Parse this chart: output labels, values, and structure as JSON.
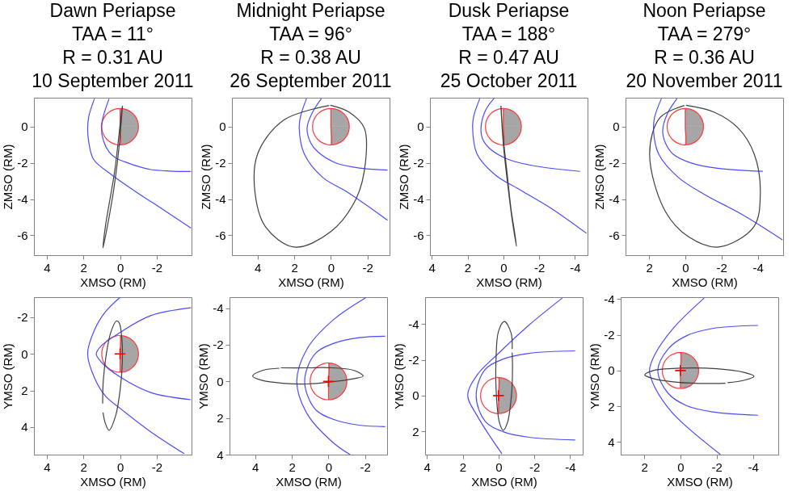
{
  "chart_data": [
    {
      "type": "line",
      "title": "Dawn Periapse\nTAA = 11°\nR = 0.31 AU\n10 September 2011",
      "xlabel": "XMSO (RM)",
      "ylabel": "ZMSO (RM)",
      "xlim": [
        4.7,
        -3.9
      ],
      "ylim": [
        -7.1,
        1.6
      ],
      "xticks": [
        4,
        2,
        0,
        -2
      ],
      "yticks": [
        0,
        -2,
        -4,
        -6
      ],
      "series": [
        {
          "type": "area",
          "color": "#a6a6a6",
          "x": [
            0,
            -0.2,
            -0.4,
            -0.6,
            -0.8,
            -0.9,
            -0.97,
            -1
          ],
          "values": [
            1,
            0.98,
            0.92,
            0.8,
            0.6,
            0.44,
            0.24,
            0
          ]
        },
        {
          "type": "area",
          "color": "#a6a6a6",
          "x": [
            0,
            -0.2,
            -0.4,
            -0.6,
            -0.8,
            -0.9,
            -0.97,
            -1
          ],
          "values": [
            -1,
            -0.98,
            -0.92,
            -0.8,
            -0.6,
            -0.44,
            -0.24,
            0
          ]
        },
        {
          "color": "#ff3b3b",
          "x": [
            0,
            0,
            0,
            0.26,
            0.5,
            0.71,
            0.87,
            0.97,
            1,
            0.97,
            0.87,
            0.71,
            0.5,
            0.26,
            0,
            -0.26,
            -0.5,
            -0.71,
            -0.87,
            -0.97,
            -1,
            -0.97,
            -0.87,
            -0.71,
            -0.5,
            -0.26,
            0
          ],
          "values": [
            1,
            0,
            -1,
            -0.97,
            -0.87,
            -0.71,
            -0.5,
            -0.26,
            0,
            0.26,
            0.5,
            0.71,
            0.87,
            0.97,
            1,
            0.97,
            0.87,
            0.71,
            0.5,
            0.26,
            0,
            -0.26,
            -0.5,
            -0.71,
            -0.87,
            -0.97,
            -1
          ]
        },
        {
          "color": "#4b4bff",
          "x": [
            0.6,
            0.85,
            1.02,
            0.9,
            0.6,
            0.2,
            -0.26,
            -1.0,
            -1.67,
            -2.7,
            -3.87
          ],
          "values": [
            1.54,
            0.8,
            0,
            -0.8,
            -1.4,
            -1.75,
            -1.94,
            -2.2,
            -2.37,
            -2.45,
            -2.48
          ]
        },
        {
          "color": "#4b4bff",
          "x": [
            1.4,
            1.7,
            1.77,
            1.7,
            1.45,
            0.46,
            -0.96,
            -2.38,
            -3.87
          ],
          "values": [
            1.54,
            0.6,
            -0.1,
            -0.9,
            -1.8,
            -2.66,
            -3.66,
            -4.6,
            -5.6
          ]
        },
        {
          "color": "#404040",
          "x": [
            -0.13,
            0.0,
            0.15,
            0.35,
            0.6,
            0.93,
            0.8,
            0.55,
            0.3,
            0.12,
            -0.02,
            -0.12
          ],
          "values": [
            1.15,
            -0.5,
            -2,
            -3.5,
            -5,
            -6.7,
            -5.5,
            -4,
            -2.5,
            -1,
            0.3,
            1.1
          ]
        }
      ]
    },
    {
      "type": "line",
      "title": "Midnight Periapse\nTAA = 96°\nR = 0.38 AU\n26 September 2011",
      "xlabel": "XMSO (RM)",
      "ylabel": "ZMSO (RM)",
      "xlim": [
        5.4,
        -3.2
      ],
      "ylim": [
        -7.1,
        1.6
      ],
      "xticks": [
        4,
        2,
        0,
        -2
      ],
      "yticks": [
        0,
        -2,
        -4,
        -6
      ],
      "series": [
        {
          "type": "area",
          "color": "#a6a6a6",
          "x": [
            0,
            -0.2,
            -0.4,
            -0.6,
            -0.8,
            -0.9,
            -0.97,
            -1
          ],
          "values": [
            1,
            0.98,
            0.92,
            0.8,
            0.6,
            0.44,
            0.24,
            0
          ]
        },
        {
          "type": "area",
          "color": "#a6a6a6",
          "x": [
            0,
            -0.2,
            -0.4,
            -0.6,
            -0.8,
            -0.9,
            -0.97,
            -1
          ],
          "values": [
            -1,
            -0.98,
            -0.92,
            -0.8,
            -0.6,
            -0.44,
            -0.24,
            0
          ]
        },
        {
          "color": "#ff3b3b",
          "x": [
            0,
            0,
            0,
            0.26,
            0.5,
            0.71,
            0.87,
            0.97,
            1,
            0.97,
            0.87,
            0.71,
            0.5,
            0.26,
            0,
            -0.26,
            -0.5,
            -0.71,
            -0.87,
            -0.97,
            -1,
            -0.97,
            -0.87,
            -0.71,
            -0.5,
            -0.26,
            0
          ],
          "values": [
            1,
            0,
            -1,
            -0.97,
            -0.87,
            -0.71,
            -0.5,
            -0.26,
            0,
            0.26,
            0.5,
            0.71,
            0.87,
            0.97,
            1,
            0.97,
            0.87,
            0.71,
            0.5,
            0.26,
            0,
            -0.26,
            -0.5,
            -0.71,
            -0.87,
            -0.97,
            -1
          ]
        },
        {
          "color": "#4b4bff",
          "x": [
            0.52,
            1.0,
            1.3,
            1.1,
            0.74,
            -0.26,
            -1.68,
            -3.09
          ],
          "values": [
            1.55,
            0.8,
            -0.07,
            -0.9,
            -1.37,
            -2.0,
            -2.3,
            -2.4
          ]
        },
        {
          "color": "#4b4bff",
          "x": [
            1.33,
            1.65,
            1.73,
            1.45,
            0.45,
            -0.97,
            -3.09
          ],
          "values": [
            1.55,
            0.6,
            -0.07,
            -1.51,
            -2.8,
            -3.66,
            -5.17
          ]
        },
        {
          "color": "#404040",
          "x": [
            0.03,
            -1.0,
            -1.82,
            -1.89,
            -1.39,
            0.03,
            2.01,
            3.57,
            4.14,
            4.0,
            2.58,
            0.1
          ],
          "values": [
            1.18,
            0.8,
            -0.07,
            -1.94,
            -3.95,
            -5.82,
            -6.65,
            -5.53,
            -3.66,
            -1.51,
            0.36,
            1.17
          ]
        }
      ]
    },
    {
      "type": "line",
      "title": "Dusk Periapse\nTAA = 188°\nR = 0.47 AU\n25 October 2011",
      "xlabel": "XMSO (RM)",
      "ylabel": "ZMSO (RM)",
      "xlim": [
        4.1,
        -4.7
      ],
      "ylim": [
        -7.1,
        1.6
      ],
      "xticks": [
        4,
        2,
        0,
        -2,
        -4
      ],
      "yticks": [
        0,
        -2,
        -4,
        -6
      ],
      "series": [
        {
          "type": "area",
          "color": "#a6a6a6",
          "x": [
            0,
            -0.2,
            -0.4,
            -0.6,
            -0.8,
            -0.9,
            -0.97,
            -1
          ],
          "values": [
            1,
            0.98,
            0.92,
            0.8,
            0.6,
            0.44,
            0.24,
            0
          ]
        },
        {
          "type": "area",
          "color": "#a6a6a6",
          "x": [
            0,
            -0.2,
            -0.4,
            -0.6,
            -0.8,
            -0.9,
            -0.97,
            -1
          ],
          "values": [
            -1,
            -0.98,
            -0.92,
            -0.8,
            -0.6,
            -0.44,
            -0.24,
            0
          ]
        },
        {
          "color": "#ff3b3b",
          "x": [
            0,
            0,
            0,
            0.26,
            0.5,
            0.71,
            0.87,
            0.97,
            1,
            0.97,
            0.87,
            0.71,
            0.5,
            0.26,
            0,
            -0.26,
            -0.5,
            -0.71,
            -0.87,
            -0.97,
            -1,
            -0.97,
            -0.87,
            -0.71,
            -0.5,
            -0.26,
            0
          ],
          "values": [
            1,
            0,
            -1,
            -0.97,
            -0.87,
            -0.71,
            -0.5,
            -0.26,
            0,
            0.26,
            0.5,
            0.71,
            0.87,
            0.97,
            1,
            0.97,
            0.87,
            0.71,
            0.5,
            0.26,
            0,
            -0.26,
            -0.5,
            -0.71,
            -0.87,
            -0.97,
            -1
          ]
        },
        {
          "color": "#4b4bff",
          "x": [
            0.53,
            1.0,
            1.25,
            1.15,
            0.75,
            -0.26,
            -1.69,
            -4.28
          ],
          "values": [
            1.55,
            0.9,
            -0.07,
            -0.7,
            -1.22,
            -1.8,
            -2.16,
            -2.47
          ]
        },
        {
          "color": "#4b4bff",
          "x": [
            1.32,
            1.65,
            1.72,
            1.47,
            0.46,
            -0.98,
            -2.7,
            -4.64
          ],
          "values": [
            1.55,
            0.6,
            -0.02,
            -1.51,
            -2.66,
            -3.52,
            -4.53,
            -5.89
          ]
        },
        {
          "color": "#404040",
          "x": [
            0.14,
            0.0,
            -0.22,
            -0.47,
            -0.73,
            -0.65,
            -0.42,
            -0.2,
            0.02,
            0.13
          ],
          "values": [
            1.15,
            -1,
            -3,
            -5,
            -6.61,
            -6,
            -4.5,
            -2.5,
            -0.5,
            1.1
          ]
        }
      ]
    },
    {
      "type": "line",
      "title": "Noon Periapse\nTAA = 279°\nR = 0.36 AU\n20 November 2011",
      "xlabel": "XMSO (RM)",
      "ylabel": "ZMSO (RM)",
      "xlim": [
        3.3,
        -5.4
      ],
      "ylim": [
        -7.1,
        1.6
      ],
      "xticks": [
        2,
        0,
        -2,
        -4
      ],
      "yticks": [
        0,
        -2,
        -4,
        -6
      ],
      "series": [
        {
          "type": "area",
          "color": "#a6a6a6",
          "x": [
            0,
            -0.2,
            -0.4,
            -0.6,
            -0.8,
            -0.9,
            -0.97,
            -1
          ],
          "values": [
            1,
            0.98,
            0.92,
            0.8,
            0.6,
            0.44,
            0.24,
            0
          ]
        },
        {
          "type": "area",
          "color": "#a6a6a6",
          "x": [
            0,
            -0.2,
            -0.4,
            -0.6,
            -0.8,
            -0.9,
            -0.97,
            -1
          ],
          "values": [
            -1,
            -0.98,
            -0.92,
            -0.8,
            -0.6,
            -0.44,
            -0.24,
            0
          ]
        },
        {
          "color": "#ff3b3b",
          "x": [
            0,
            0,
            0,
            0.26,
            0.5,
            0.71,
            0.87,
            0.97,
            1,
            0.97,
            0.87,
            0.71,
            0.5,
            0.26,
            0,
            -0.26,
            -0.5,
            -0.71,
            -0.87,
            -0.97,
            -1,
            -0.97,
            -0.87,
            -0.71,
            -0.5,
            -0.26,
            0
          ],
          "values": [
            1,
            0,
            -1,
            -0.97,
            -0.87,
            -0.71,
            -0.5,
            -0.26,
            0,
            0.26,
            0.5,
            0.71,
            0.87,
            0.97,
            1,
            0.97,
            0.87,
            0.71,
            0.5,
            0.26,
            0,
            -0.26,
            -0.5,
            -0.71,
            -0.87,
            -0.97,
            -1
          ]
        },
        {
          "color": "#4b4bff",
          "x": [
            0.46,
            1.0,
            1.25,
            1.1,
            0.68,
            -0.33,
            -1.77,
            -4.28
          ],
          "values": [
            1.55,
            0.7,
            -0.22,
            -0.9,
            -1.51,
            -2.01,
            -2.3,
            -2.47
          ]
        },
        {
          "color": "#4b4bff",
          "x": [
            1.32,
            1.7,
            1.75,
            1.47,
            0.39,
            -1.05,
            -3.2,
            -5.36
          ],
          "values": [
            1.55,
            0.5,
            -0.29,
            -1.51,
            -2.8,
            -3.74,
            -4.89,
            -6.25
          ]
        },
        {
          "color": "#404040",
          "x": [
            -0.04,
            -1.6,
            -2.91,
            -3.8,
            -4.14,
            -3.78,
            -1.84,
            -0.2,
            1.11,
            1.97,
            1.4,
            0.05
          ],
          "values": [
            1.18,
            0.8,
            -0.07,
            -1.5,
            -3.66,
            -5.53,
            -6.65,
            -6.1,
            -4.67,
            -1.51,
            0.5,
            1.17
          ]
        }
      ]
    },
    {
      "type": "line",
      "xlabel": "XMSO (RM)",
      "ylabel": "YMSO (RM)",
      "xlim": [
        4.7,
        -3.9
      ],
      "ylim": [
        5.5,
        -3.1
      ],
      "xticks": [
        4,
        2,
        0,
        -2
      ],
      "yticks": [
        -2,
        0,
        2,
        4
      ],
      "series": [
        {
          "type": "area",
          "color": "#a6a6a6",
          "x": [
            0,
            -0.2,
            -0.4,
            -0.6,
            -0.8,
            -0.9,
            -0.97,
            -1
          ],
          "values": [
            1,
            0.98,
            0.92,
            0.8,
            0.6,
            0.44,
            0.24,
            0
          ]
        },
        {
          "type": "area",
          "color": "#a6a6a6",
          "x": [
            0,
            -0.2,
            -0.4,
            -0.6,
            -0.8,
            -0.9,
            -0.97,
            -1
          ],
          "values": [
            -1,
            -0.98,
            -0.92,
            -0.8,
            -0.6,
            -0.44,
            -0.24,
            0
          ]
        },
        {
          "color": "#ff3b3b",
          "x": [
            0,
            0,
            0,
            0.26,
            0.5,
            0.71,
            0.87,
            0.97,
            1,
            0.97,
            0.87,
            0.71,
            0.5,
            0.26,
            0,
            -0.26,
            -0.5,
            -0.71,
            -0.87,
            -0.97,
            -1,
            -0.97,
            -0.87,
            -0.71,
            -0.5,
            -0.26,
            0
          ],
          "values": [
            1,
            0,
            -1,
            -0.97,
            -0.87,
            -0.71,
            -0.5,
            -0.26,
            0,
            0.26,
            0.5,
            0.71,
            0.87,
            0.97,
            1,
            0.97,
            0.87,
            0.71,
            0.5,
            0.26,
            0,
            -0.26,
            -0.5,
            -0.71,
            -0.87,
            -0.97,
            -1
          ]
        },
        {
          "color": "#4b4bff",
          "x": [
            -3.87,
            -1.67,
            0,
            1.02,
            1.3,
            1.02,
            0,
            -1.67,
            -3.87
          ],
          "values": [
            -2.52,
            -2.09,
            -1.17,
            -0.45,
            0,
            0.45,
            1.26,
            2.11,
            2.5
          ]
        },
        {
          "color": "#4b4bff",
          "x": [
            0,
            0.8,
            1.4,
            1.77,
            1.4,
            0.8,
            0,
            -1.67,
            -3.5
          ],
          "values": [
            -3.09,
            -2.3,
            -1.3,
            0,
            1.3,
            2.3,
            2.97,
            4.25,
            5.45
          ]
        },
        {
          "color": "#404040",
          "x": [
            0.95,
            0.92,
            0.75,
            0.5,
            0.2,
            0.05,
            -0.1,
            -0.12,
            0,
            0.25,
            0.6,
            0.8,
            0.93
          ],
          "values": [
            2.71,
            1.5,
            0,
            -1.2,
            -1.8,
            -1.7,
            -0.8,
            0.5,
            2,
            3.4,
            4.17,
            3.8,
            3.2
          ]
        },
        {
          "type": "scatter",
          "marker": "cross",
          "color": "#ff0000",
          "x": [
            0
          ],
          "values": [
            0
          ]
        }
      ]
    },
    {
      "type": "line",
      "xlabel": "XMSO (RM)",
      "ylabel": "YMSO (RM)",
      "xlim": [
        5.4,
        -3.2
      ],
      "ylim": [
        4,
        -4.6
      ],
      "xticks": [
        4,
        2,
        0,
        -2
      ],
      "yticks": [
        -4,
        -2,
        0,
        2,
        4
      ],
      "series": [
        {
          "type": "area",
          "color": "#a6a6a6",
          "x": [
            0,
            -0.2,
            -0.4,
            -0.6,
            -0.8,
            -0.9,
            -0.97,
            -1
          ],
          "values": [
            1,
            0.98,
            0.92,
            0.8,
            0.6,
            0.44,
            0.24,
            0
          ]
        },
        {
          "type": "area",
          "color": "#a6a6a6",
          "x": [
            0,
            -0.2,
            -0.4,
            -0.6,
            -0.8,
            -0.9,
            -0.97,
            -1
          ],
          "values": [
            -1,
            -0.98,
            -0.92,
            -0.8,
            -0.6,
            -0.44,
            -0.24,
            0
          ]
        },
        {
          "color": "#ff3b3b",
          "x": [
            0,
            0,
            0,
            0.26,
            0.5,
            0.71,
            0.87,
            0.97,
            1,
            0.97,
            0.87,
            0.71,
            0.5,
            0.26,
            0,
            -0.26,
            -0.5,
            -0.71,
            -0.87,
            -0.97,
            -1,
            -0.97,
            -0.87,
            -0.71,
            -0.5,
            -0.26,
            0
          ],
          "values": [
            1,
            0,
            -1,
            -0.97,
            -0.87,
            -0.71,
            -0.5,
            -0.26,
            0,
            0.26,
            0.5,
            0.71,
            0.87,
            0.97,
            1,
            0.97,
            0.87,
            0.71,
            0.5,
            0.26,
            0,
            -0.26,
            -0.5,
            -0.71,
            -0.87,
            -0.97,
            -1
          ]
        },
        {
          "color": "#4b4bff",
          "x": [
            -3.09,
            -1.68,
            -0.26,
            0.74,
            1.3,
            0.74,
            -0.26,
            -1.68,
            -3.09
          ],
          "values": [
            -2.47,
            -2.39,
            -2.07,
            -1.5,
            0,
            1.5,
            2.07,
            2.39,
            2.47
          ]
        },
        {
          "color": "#4b4bff",
          "x": [
            -2.03,
            -0.26,
            1.16,
            1.73,
            1.16,
            -0.26,
            -1.18
          ],
          "values": [
            -4.57,
            -3.36,
            -1.79,
            0,
            1.78,
            3.35,
            4.0
          ]
        },
        {
          "color": "#404040",
          "x": [
            2.68,
            3.6,
            4.14,
            3.6,
            2.5,
            1.16,
            0,
            -1.4,
            -1.89,
            -1.4,
            0,
            1.16,
            2.6
          ],
          "values": [
            -0.72,
            -0.6,
            -0.29,
            -0.05,
            0.1,
            0.14,
            0.05,
            -0.15,
            -0.29,
            -0.6,
            -0.75,
            -0.74,
            -0.74
          ]
        },
        {
          "type": "scatter",
          "marker": "cross",
          "color": "#ff0000",
          "x": [
            0
          ],
          "values": [
            0
          ]
        }
      ]
    },
    {
      "type": "line",
      "xlabel": "XMSO (RM)",
      "ylabel": "YMSO (RM)",
      "xlim": [
        4.1,
        -4.7
      ],
      "ylim": [
        3.3,
        -5.5
      ],
      "xticks": [
        4,
        2,
        0,
        -2,
        -4
      ],
      "yticks": [
        -4,
        -2,
        0,
        2
      ],
      "series": [
        {
          "type": "area",
          "color": "#a6a6a6",
          "x": [
            0,
            -0.2,
            -0.4,
            -0.6,
            -0.8,
            -0.9,
            -0.97,
            -1
          ],
          "values": [
            1,
            0.98,
            0.92,
            0.8,
            0.6,
            0.44,
            0.24,
            0
          ]
        },
        {
          "type": "area",
          "color": "#a6a6a6",
          "x": [
            0,
            -0.2,
            -0.4,
            -0.6,
            -0.8,
            -0.9,
            -0.97,
            -1
          ],
          "values": [
            -1,
            -0.98,
            -0.92,
            -0.8,
            -0.6,
            -0.44,
            -0.24,
            0
          ]
        },
        {
          "color": "#ff3b3b",
          "x": [
            0,
            0,
            0,
            0.26,
            0.5,
            0.71,
            0.87,
            0.97,
            1,
            0.97,
            0.87,
            0.71,
            0.5,
            0.26,
            0,
            -0.26,
            -0.5,
            -0.71,
            -0.87,
            -0.97,
            -1,
            -0.97,
            -0.87,
            -0.71,
            -0.5,
            -0.26,
            0
          ],
          "values": [
            1,
            0,
            -1,
            -0.97,
            -0.87,
            -0.71,
            -0.5,
            -0.26,
            0,
            0.26,
            0.5,
            0.71,
            0.87,
            0.97,
            1,
            0.97,
            0.87,
            0.71,
            0.5,
            0.26,
            0,
            -0.26,
            -0.5,
            -0.71,
            -0.87,
            -0.97,
            -1
          ]
        },
        {
          "color": "#4b4bff",
          "x": [
            -4.28,
            -1.69,
            -0.26,
            0.75,
            1.25,
            0.75,
            -0.26,
            -1.69,
            -4.28
          ],
          "values": [
            -2.5,
            -2.36,
            -2.04,
            -1.46,
            0,
            1.43,
            2.02,
            2.33,
            2.48
          ]
        },
        {
          "color": "#4b4bff",
          "x": [
            -3.56,
            -1.69,
            0.03,
            1.18,
            1.72,
            1.18,
            0.46,
            -0.19
          ],
          "values": [
            -5.45,
            -3.93,
            -2.33,
            -1.17,
            0,
            1.15,
            2.3,
            3.25
          ]
        },
        {
          "color": "#404040",
          "x": [
            -0.76,
            -0.7,
            -0.33,
            0.0,
            0.14,
            0.12,
            -0.05,
            -0.26,
            -0.5,
            -0.72,
            -0.78,
            -0.76
          ],
          "values": [
            -2.6,
            -3.5,
            -4.14,
            -3.6,
            -2,
            0,
            1.5,
            1.94,
            1.5,
            0,
            -1.5,
            -2.4
          ]
        },
        {
          "type": "scatter",
          "marker": "cross",
          "color": "#ff0000",
          "x": [
            0
          ],
          "values": [
            0
          ]
        }
      ]
    },
    {
      "type": "line",
      "xlabel": "XMSO (RM)",
      "ylabel": "YMSO (RM)",
      "xlim": [
        3.3,
        -5.4
      ],
      "ylim": [
        4.7,
        -4.1
      ],
      "xticks": [
        2,
        0,
        -2,
        -4
      ],
      "yticks": [
        -4,
        -2,
        0,
        2,
        4
      ],
      "series": [
        {
          "type": "area",
          "color": "#a6a6a6",
          "x": [
            0,
            -0.2,
            -0.4,
            -0.6,
            -0.8,
            -0.9,
            -0.97,
            -1
          ],
          "values": [
            1,
            0.98,
            0.92,
            0.8,
            0.6,
            0.44,
            0.24,
            0
          ]
        },
        {
          "type": "area",
          "color": "#a6a6a6",
          "x": [
            0,
            -0.2,
            -0.4,
            -0.6,
            -0.8,
            -0.9,
            -0.97,
            -1
          ],
          "values": [
            -1,
            -0.98,
            -0.92,
            -0.8,
            -0.6,
            -0.44,
            -0.24,
            0
          ]
        },
        {
          "color": "#ff3b3b",
          "x": [
            0,
            0,
            0,
            0.26,
            0.5,
            0.71,
            0.87,
            0.97,
            1,
            0.97,
            0.87,
            0.71,
            0.5,
            0.26,
            0,
            -0.26,
            -0.5,
            -0.71,
            -0.87,
            -0.97,
            -1,
            -0.97,
            -0.87,
            -0.71,
            -0.5,
            -0.26,
            0
          ],
          "values": [
            1,
            0,
            -1,
            -0.97,
            -0.87,
            -0.71,
            -0.5,
            -0.26,
            0,
            0.26,
            0.5,
            0.71,
            0.87,
            0.97,
            1,
            0.97,
            0.87,
            0.71,
            0.5,
            0.26,
            0,
            -0.26,
            -0.5,
            -0.71,
            -0.87,
            -0.97,
            -1
          ]
        },
        {
          "color": "#4b4bff",
          "x": [
            -4.28,
            -1.77,
            -0.33,
            0.68,
            1.25,
            0.68,
            -0.33,
            -1.77,
            -4.28
          ],
          "values": [
            -2.52,
            -2.35,
            -1.94,
            -1.21,
            0,
            1.27,
            1.96,
            2.31,
            2.5
          ]
        },
        {
          "color": "#4b4bff",
          "x": [
            -1.31,
            0.39,
            1.4,
            1.71,
            1.4,
            0.39,
            -2.2
          ],
          "values": [
            -4.05,
            -2.37,
            -0.92,
            0,
            0.97,
            2.43,
            4.69
          ]
        },
        {
          "color": "#404040",
          "x": [
            -2.48,
            -1,
            0.5,
            1.5,
            1.97,
            1.5,
            0,
            -2,
            -3.5,
            -4.06,
            -3.5,
            -2.6
          ],
          "values": [
            0.71,
            0.72,
            0.62,
            0.45,
            0.25,
            0.0,
            -0.13,
            -0.1,
            0.1,
            0.32,
            0.55,
            0.68
          ]
        },
        {
          "type": "scatter",
          "marker": "cross",
          "color": "#ff0000",
          "x": [
            0
          ],
          "values": [
            0
          ]
        }
      ]
    }
  ]
}
